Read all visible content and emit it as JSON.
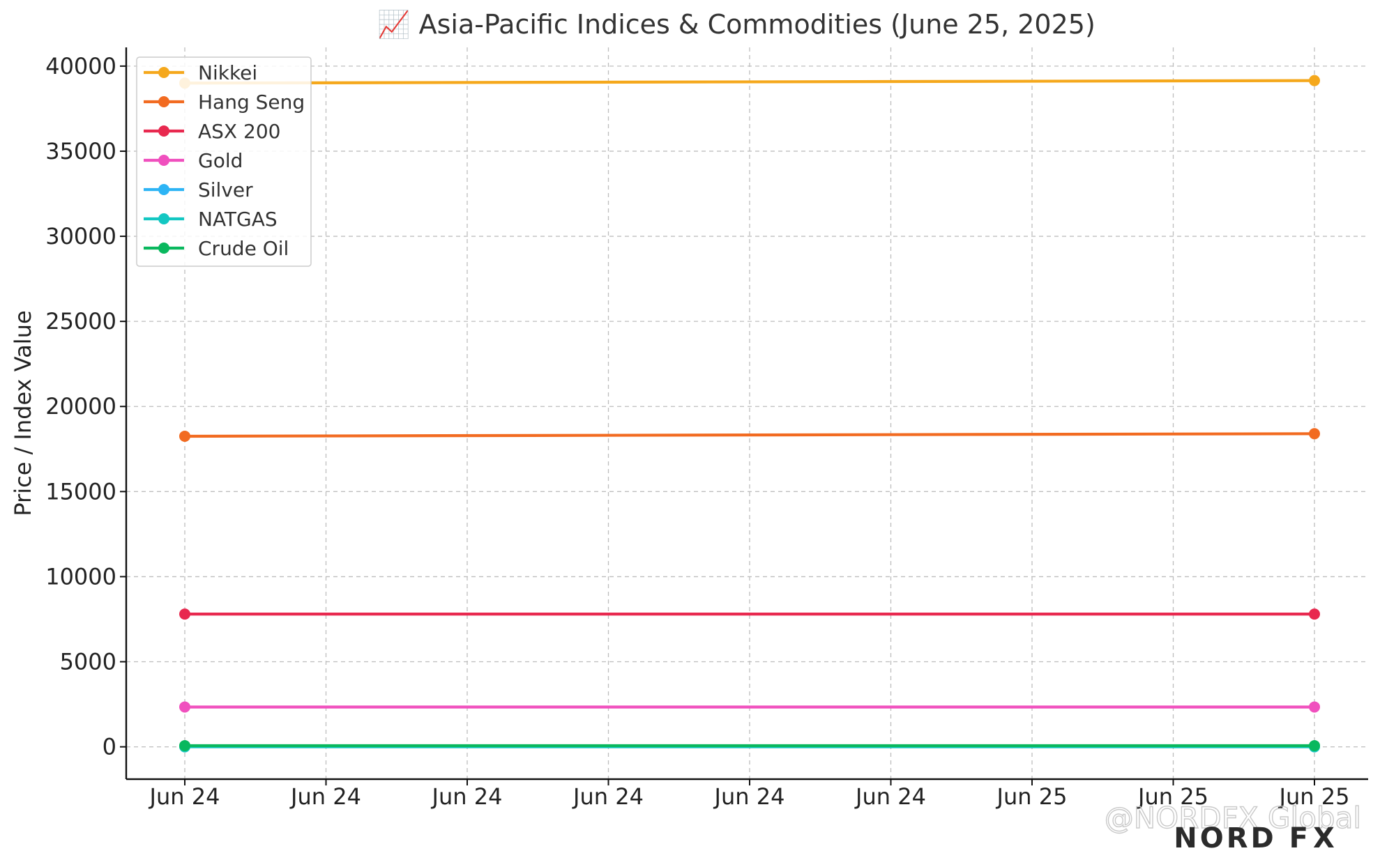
{
  "chart_data": {
    "type": "line",
    "title": "📈 Asia-Pacific Indices & Commodities (June 25, 2025)",
    "xlabel": "",
    "ylabel": "Price / Index Value",
    "x_ticks": [
      "Jun 24",
      "Jun 24",
      "Jun 24",
      "Jun 24",
      "Jun 24",
      "Jun 24",
      "Jun 25",
      "Jun 25",
      "Jun 25"
    ],
    "x_range": [
      0,
      8
    ],
    "x": [
      0,
      8
    ],
    "ylim": [
      -1900,
      41100
    ],
    "y_ticks": [
      0,
      5000,
      10000,
      15000,
      20000,
      25000,
      30000,
      35000,
      40000
    ],
    "grid": true,
    "legend_position": "top-left",
    "series": [
      {
        "name": "Nikkei",
        "values": [
          39000,
          39150
        ],
        "color": "#F5A81C"
      },
      {
        "name": "Hang Seng",
        "values": [
          18250,
          18400
        ],
        "color": "#F26B21"
      },
      {
        "name": "ASX 200",
        "values": [
          7800,
          7800
        ],
        "color": "#E8294F"
      },
      {
        "name": "Gold",
        "values": [
          2340,
          2340
        ],
        "color": "#F050BE"
      },
      {
        "name": "Silver",
        "values": [
          30,
          30
        ],
        "color": "#2DB4F5"
      },
      {
        "name": "NATGAS",
        "values": [
          3,
          3
        ],
        "color": "#13C7C2"
      },
      {
        "name": "Crude Oil",
        "values": [
          68,
          68
        ],
        "color": "#09B85E"
      }
    ]
  },
  "watermark": {
    "handle": "@NORDFX Global",
    "brand_a": "NORD F",
    "brand_b": "X",
    "brand_b_color": "#3cb878"
  }
}
